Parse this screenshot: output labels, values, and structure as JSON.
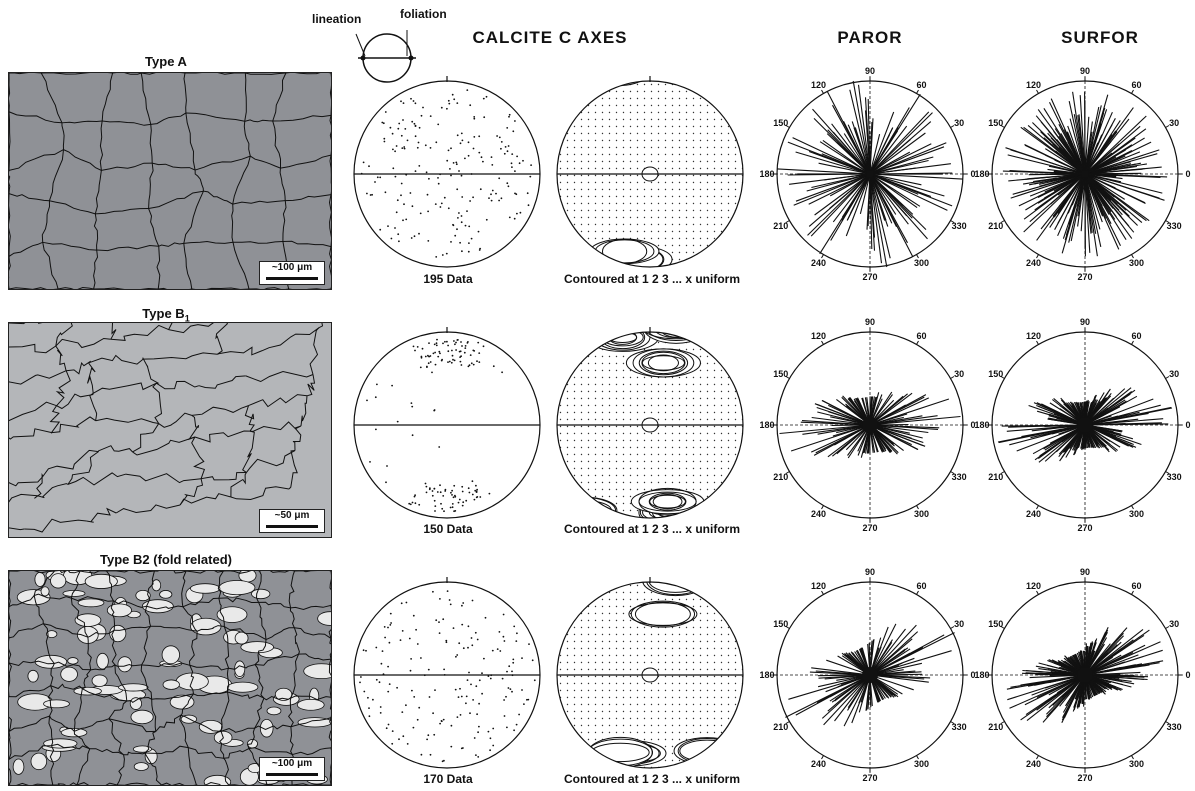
{
  "header": {
    "lineation_label": "lineation",
    "foliation_label": "foliation",
    "calcite_title": "CALCITE C AXES",
    "paror_title": "PAROR",
    "surfor_title": "SURFOR"
  },
  "rows": [
    {
      "title": "Type A",
      "title_sub": "",
      "scale": "~100 μm",
      "data_count": "195 Data",
      "contour_caption": "Contoured at 1 2 3 ... x uniform"
    },
    {
      "title": "Type B",
      "title_sub": "1",
      "scale": "~50 μm",
      "data_count": "150 Data",
      "contour_caption": "Contoured at 1 2 3 ... x uniform"
    },
    {
      "title": "Type B2 (fold related)",
      "title_sub": "",
      "scale": "~100 μm",
      "data_count": "170 Data",
      "contour_caption": "Contoured at 1 2 3 ... x uniform"
    }
  ],
  "rose_angles": [
    "90",
    "60",
    "30",
    "0",
    "330",
    "300",
    "270",
    "240",
    "210",
    "180",
    "150",
    "120"
  ],
  "colors": {
    "grain_fill": "#8f9196",
    "grain_fill_light": "#b4b6b9",
    "grain_bright": "#e9e9e9",
    "line": "#111111"
  }
}
